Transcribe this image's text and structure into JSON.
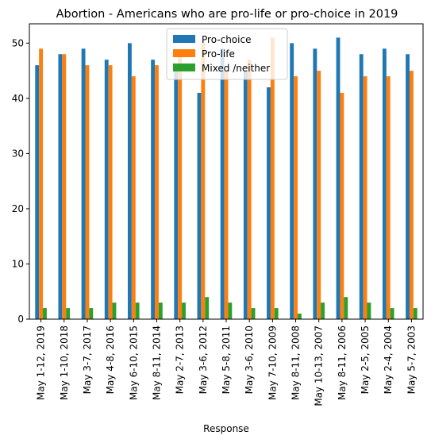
{
  "chart_data": {
    "type": "bar",
    "title": "Abortion - Americans who are pro-life or pro-choice in 2019",
    "xlabel": "Response",
    "ylabel": "",
    "ylim": [
      0,
      53.5
    ],
    "yticks": [
      0,
      10,
      20,
      30,
      40,
      50
    ],
    "legend_position": "top-center",
    "categories": [
      "May 1-12, 2019",
      "May 1-10, 2018",
      "May 3-7, 2017",
      "May 4-8, 2016",
      "May 6-10, 2015",
      "May 8-11, 2014",
      "May 2-7, 2013",
      "May 3-6, 2012",
      "May 5-8, 2011",
      "May 3-6, 2010",
      "May 7-10, 2009",
      "May 8-11, 2008",
      "May 10-13, 2007",
      "May 8-11, 2006",
      "May 2-5, 2005",
      "May 2-4, 2004",
      "May 5-7, 2003"
    ],
    "series": [
      {
        "name": "Pro-choice",
        "color": "#1f77b4",
        "values": [
          46,
          48,
          49,
          47,
          50,
          47,
          45,
          41,
          49,
          45,
          42,
          50,
          49,
          51,
          48,
          49,
          48
        ]
      },
      {
        "name": "Pro-life",
        "color": "#ff7f0e",
        "values": [
          49,
          48,
          46,
          46,
          44,
          46,
          48,
          50,
          45,
          47,
          51,
          44,
          45,
          41,
          44,
          44,
          45
        ]
      },
      {
        "name": "Mixed /neither",
        "color": "#2ca02c",
        "values": [
          2,
          2,
          2,
          3,
          3,
          3,
          3,
          4,
          3,
          2,
          2,
          1,
          3,
          4,
          3,
          2,
          2
        ]
      }
    ]
  }
}
